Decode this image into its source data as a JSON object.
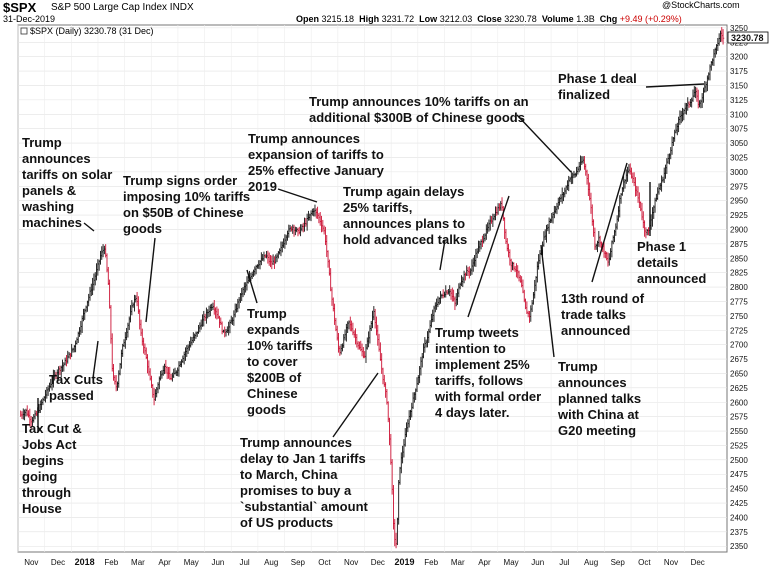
{
  "header": {
    "symbol": "$SPX",
    "name": "S&P 500 Large Cap Index",
    "exchange": "INDX",
    "date": "31-Dec-2019",
    "brand": "@StockCharts.com",
    "open_label": "Open",
    "open": "3215.18",
    "high_label": "High",
    "high": "3231.72",
    "low_label": "Low",
    "low": "3212.03",
    "close_label": "Close",
    "close": "3230.78",
    "volume_label": "Volume",
    "volume": "1.3B",
    "chg_label": "Chg",
    "chg": "+9.49 (+0.29%)"
  },
  "chart_data": {
    "type": "line",
    "legend": "$SPX (Daily) 3230.78 (31 Dec)",
    "last_value_label": "3230.78",
    "ylim": [
      2340,
      3255
    ],
    "yticks": [
      2350,
      2375,
      2400,
      2425,
      2450,
      2475,
      2500,
      2525,
      2550,
      2575,
      2600,
      2625,
      2650,
      2675,
      2700,
      2725,
      2750,
      2775,
      2800,
      2825,
      2850,
      2875,
      2900,
      2925,
      2950,
      2975,
      3000,
      3025,
      3050,
      3075,
      3100,
      3125,
      3150,
      3175,
      3200,
      3225,
      3250
    ],
    "x_labels": [
      {
        "label": "Nov",
        "m": 0.5
      },
      {
        "label": "Dec",
        "m": 1.5
      },
      {
        "label": "2018",
        "m": 2.5,
        "year": true
      },
      {
        "label": "Feb",
        "m": 3.5
      },
      {
        "label": "Mar",
        "m": 4.5
      },
      {
        "label": "Apr",
        "m": 5.5
      },
      {
        "label": "May",
        "m": 6.5
      },
      {
        "label": "Jun",
        "m": 7.5
      },
      {
        "label": "Jul",
        "m": 8.5
      },
      {
        "label": "Aug",
        "m": 9.5
      },
      {
        "label": "Sep",
        "m": 10.5
      },
      {
        "label": "Oct",
        "m": 11.5
      },
      {
        "label": "Nov",
        "m": 12.5
      },
      {
        "label": "Dec",
        "m": 13.5
      },
      {
        "label": "2019",
        "m": 14.5,
        "year": true
      },
      {
        "label": "Feb",
        "m": 15.5
      },
      {
        "label": "Mar",
        "m": 16.5
      },
      {
        "label": "Apr",
        "m": 17.5
      },
      {
        "label": "May",
        "m": 18.5
      },
      {
        "label": "Jun",
        "m": 19.5
      },
      {
        "label": "Jul",
        "m": 20.5
      },
      {
        "label": "Aug",
        "m": 21.5
      },
      {
        "label": "Sep",
        "m": 22.5
      },
      {
        "label": "Oct",
        "m": 23.5
      },
      {
        "label": "Nov",
        "m": 24.5
      },
      {
        "label": "Dec",
        "m": 25.5
      }
    ],
    "series": [
      {
        "points": [
          [
            0.1,
            2578
          ],
          [
            0.3,
            2585
          ],
          [
            0.5,
            2568
          ],
          [
            0.7,
            2580
          ],
          [
            0.9,
            2600
          ],
          [
            1.1,
            2620
          ],
          [
            1.3,
            2640
          ],
          [
            1.5,
            2655
          ],
          [
            1.7,
            2665
          ],
          [
            1.9,
            2680
          ],
          [
            2.1,
            2695
          ],
          [
            2.3,
            2725
          ],
          [
            2.5,
            2760
          ],
          [
            2.7,
            2790
          ],
          [
            2.9,
            2820
          ],
          [
            3.1,
            2855
          ],
          [
            3.25,
            2870
          ],
          [
            3.4,
            2800
          ],
          [
            3.55,
            2645
          ],
          [
            3.7,
            2625
          ],
          [
            3.9,
            2690
          ],
          [
            4.1,
            2730
          ],
          [
            4.3,
            2770
          ],
          [
            4.45,
            2785
          ],
          [
            4.6,
            2720
          ],
          [
            4.8,
            2680
          ],
          [
            4.95,
            2640
          ],
          [
            5.1,
            2605
          ],
          [
            5.3,
            2640
          ],
          [
            5.5,
            2665
          ],
          [
            5.7,
            2640
          ],
          [
            5.9,
            2650
          ],
          [
            6.1,
            2670
          ],
          [
            6.3,
            2690
          ],
          [
            6.5,
            2705
          ],
          [
            6.7,
            2720
          ],
          [
            6.9,
            2740
          ],
          [
            7.1,
            2755
          ],
          [
            7.3,
            2770
          ],
          [
            7.5,
            2750
          ],
          [
            7.7,
            2720
          ],
          [
            7.9,
            2730
          ],
          [
            8.1,
            2750
          ],
          [
            8.3,
            2780
          ],
          [
            8.5,
            2800
          ],
          [
            8.7,
            2815
          ],
          [
            8.9,
            2835
          ],
          [
            9.1,
            2845
          ],
          [
            9.3,
            2855
          ],
          [
            9.5,
            2840
          ],
          [
            9.7,
            2850
          ],
          [
            9.9,
            2870
          ],
          [
            10.1,
            2895
          ],
          [
            10.3,
            2905
          ],
          [
            10.5,
            2895
          ],
          [
            10.7,
            2905
          ],
          [
            10.9,
            2920
          ],
          [
            11.1,
            2935
          ],
          [
            11.3,
            2920
          ],
          [
            11.5,
            2895
          ],
          [
            11.6,
            2855
          ],
          [
            11.75,
            2790
          ],
          [
            11.9,
            2735
          ],
          [
            12.05,
            2685
          ],
          [
            12.2,
            2705
          ],
          [
            12.4,
            2740
          ],
          [
            12.6,
            2720
          ],
          [
            12.8,
            2695
          ],
          [
            13.0,
            2680
          ],
          [
            13.2,
            2725
          ],
          [
            13.35,
            2760
          ],
          [
            13.5,
            2705
          ],
          [
            13.7,
            2640
          ],
          [
            13.85,
            2600
          ],
          [
            14.0,
            2490
          ],
          [
            14.1,
            2370
          ],
          [
            14.2,
            2352
          ],
          [
            14.3,
            2480
          ],
          [
            14.45,
            2520
          ],
          [
            14.6,
            2560
          ],
          [
            14.8,
            2600
          ],
          [
            15.0,
            2640
          ],
          [
            15.2,
            2690
          ],
          [
            15.4,
            2720
          ],
          [
            15.6,
            2760
          ],
          [
            15.8,
            2780
          ],
          [
            16.0,
            2790
          ],
          [
            16.2,
            2795
          ],
          [
            16.4,
            2770
          ],
          [
            16.6,
            2810
          ],
          [
            16.8,
            2825
          ],
          [
            17.0,
            2830
          ],
          [
            17.2,
            2860
          ],
          [
            17.4,
            2880
          ],
          [
            17.6,
            2900
          ],
          [
            17.8,
            2920
          ],
          [
            18.0,
            2935
          ],
          [
            18.15,
            2945
          ],
          [
            18.3,
            2880
          ],
          [
            18.5,
            2840
          ],
          [
            18.7,
            2830
          ],
          [
            18.9,
            2800
          ],
          [
            19.05,
            2760
          ],
          [
            19.2,
            2750
          ],
          [
            19.35,
            2790
          ],
          [
            19.5,
            2840
          ],
          [
            19.7,
            2880
          ],
          [
            19.9,
            2910
          ],
          [
            20.1,
            2930
          ],
          [
            20.3,
            2950
          ],
          [
            20.5,
            2965
          ],
          [
            20.7,
            2990
          ],
          [
            20.9,
            2995
          ],
          [
            21.05,
            3010
          ],
          [
            21.2,
            3020
          ],
          [
            21.35,
            2990
          ],
          [
            21.5,
            2935
          ],
          [
            21.65,
            2870
          ],
          [
            21.8,
            2885
          ],
          [
            22.0,
            2860
          ],
          [
            22.15,
            2840
          ],
          [
            22.3,
            2880
          ],
          [
            22.45,
            2910
          ],
          [
            22.6,
            2960
          ],
          [
            22.75,
            2985
          ],
          [
            22.9,
            3005
          ],
          [
            23.05,
            2990
          ],
          [
            23.2,
            2965
          ],
          [
            23.35,
            2940
          ],
          [
            23.5,
            2900
          ],
          [
            23.65,
            2895
          ],
          [
            23.8,
            2930
          ],
          [
            24.0,
            2965
          ],
          [
            24.2,
            2990
          ],
          [
            24.4,
            3025
          ],
          [
            24.6,
            3060
          ],
          [
            24.8,
            3090
          ],
          [
            25.0,
            3110
          ],
          [
            25.2,
            3120
          ],
          [
            25.4,
            3140
          ],
          [
            25.55,
            3115
          ],
          [
            25.7,
            3135
          ],
          [
            25.9,
            3170
          ],
          [
            26.05,
            3195
          ],
          [
            26.2,
            3215
          ],
          [
            26.35,
            3240
          ],
          [
            26.5,
            3230
          ]
        ]
      }
    ],
    "annotations": [
      {
        "name": "ann-tax-cut-jobs-act",
        "lines": [
          "Tax Cut &",
          "Jobs Act",
          "begins",
          "going",
          "through",
          "House"
        ]
      },
      {
        "name": "ann-trump-solar-panels",
        "lines": [
          "Trump",
          "announces",
          "tariffs on solar",
          "panels &",
          "washing",
          "machines"
        ]
      },
      {
        "name": "ann-tax-cuts-passed",
        "lines": [
          "Tax Cuts",
          "passed"
        ]
      },
      {
        "name": "ann-trump-signs-order",
        "lines": [
          "Trump signs order",
          "imposing 10% tariffs",
          "on $50B of Chinese",
          "goods"
        ]
      },
      {
        "name": "ann-expansion-of-tariffs",
        "lines": [
          "Trump announces",
          "expansion of tariffs to",
          "25% effective January",
          "2019"
        ]
      },
      {
        "name": "ann-expands-10-percent",
        "lines": [
          "Trump",
          "expands",
          "10% tariffs",
          "to cover",
          "$200B of",
          "Chinese",
          "goods"
        ]
      },
      {
        "name": "ann-delay-to-jan-1",
        "lines": [
          "Trump announces",
          "delay to Jan 1 tariffs",
          "to March, China",
          "promises to buy a",
          "`substantial` amount",
          "of US products"
        ]
      },
      {
        "name": "ann-10-percent-300b",
        "lines": [
          "Trump announces 10% tariffs on an",
          "additional $300B of Chinese goods"
        ]
      },
      {
        "name": "ann-again-delays",
        "lines": [
          "Trump again delays",
          "25% tariffs,",
          "announces plans to",
          "hold advanced talks"
        ]
      },
      {
        "name": "ann-tweets-intention",
        "lines": [
          "Trump tweets",
          "intention to",
          "implement 25%",
          "tariffs, follows",
          "with formal order",
          "4 days later."
        ]
      },
      {
        "name": "ann-planned-talks-g20",
        "lines": [
          "Trump",
          "announces",
          "planned talks",
          "with China at",
          "G20 meeting"
        ]
      },
      {
        "name": "ann-13th-round",
        "lines": [
          "13th round of",
          "trade talks",
          "announced"
        ]
      },
      {
        "name": "ann-phase1-details",
        "lines": [
          "Phase 1",
          "details",
          "announced"
        ]
      },
      {
        "name": "ann-phase1-finalized",
        "lines": [
          "Phase 1 deal",
          "finalized"
        ]
      }
    ]
  }
}
